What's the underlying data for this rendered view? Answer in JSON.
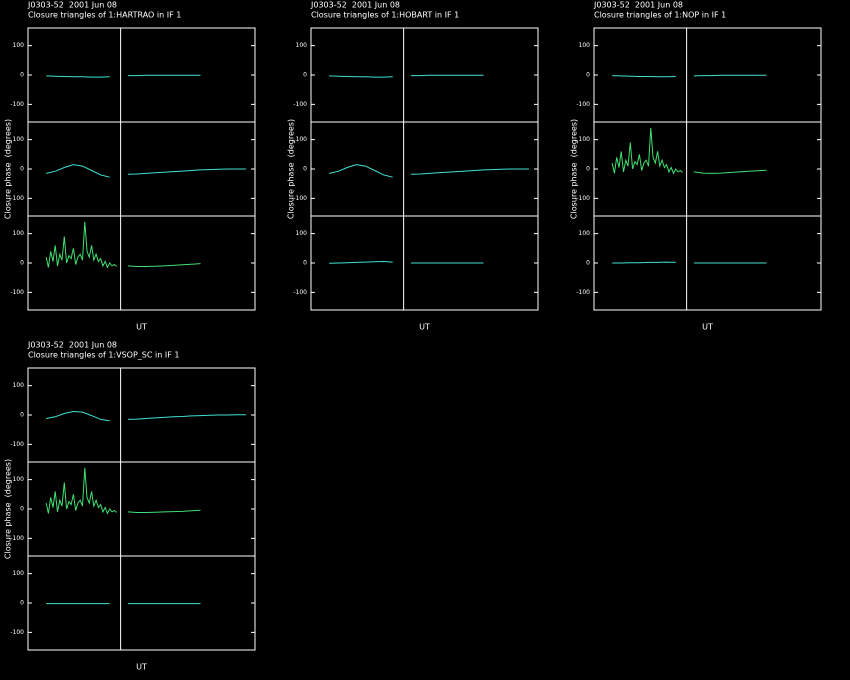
{
  "chart_data": [
    {
      "type": "line",
      "title": "J0303-52  2001 Jun 08",
      "subtitle": "Closure triangles of 1:HARTRAO in IF 1",
      "ylabel": "Closure phase  (degrees)",
      "xlabel": "UT",
      "xlim": [
        0,
        25
      ],
      "ylim": [
        -160,
        160
      ],
      "yticks": [
        -100,
        0,
        100
      ],
      "panels": [
        {
          "color": "#40e0d0",
          "x": [
            2,
            3,
            4,
            5,
            6,
            7,
            8,
            9,
            10,
            11,
            12,
            13,
            14,
            15,
            16,
            17,
            18,
            19
          ],
          "values": [
            -3,
            -4,
            -5,
            -6,
            -6,
            -7,
            -7,
            -6,
            null,
            -2,
            -2,
            -1,
            -1,
            -1,
            -1,
            -1,
            -1,
            -1
          ]
        },
        {
          "color": "#40e0d0",
          "x": [
            2,
            3,
            4,
            5,
            6,
            7,
            8,
            9,
            10,
            11,
            12,
            13,
            14,
            15,
            16,
            17,
            18,
            19,
            20,
            21,
            22,
            23,
            24
          ],
          "values": [
            -15,
            -8,
            5,
            15,
            10,
            -5,
            -20,
            -28,
            null,
            -18,
            -17,
            -15,
            -13,
            -11,
            -9,
            -7,
            -5,
            -3,
            -2,
            -1,
            0,
            0,
            0
          ]
        },
        {
          "color": "#40e070",
          "x": [
            2,
            2.25,
            2.5,
            2.75,
            3,
            3.25,
            3.5,
            3.75,
            4,
            4.25,
            4.5,
            4.75,
            5,
            5.25,
            5.5,
            5.75,
            6,
            6.25,
            6.5,
            6.75,
            7,
            7.25,
            7.5,
            7.75,
            8,
            8.25,
            8.5,
            8.75,
            9,
            9.25,
            9.5,
            9.75,
            10,
            11,
            12,
            13,
            14,
            15,
            16,
            17,
            18,
            19
          ],
          "values": [
            20,
            -15,
            40,
            5,
            60,
            -10,
            30,
            10,
            90,
            0,
            25,
            15,
            50,
            -5,
            20,
            30,
            10,
            140,
            40,
            20,
            60,
            10,
            30,
            5,
            15,
            -10,
            5,
            -15,
            0,
            -10,
            -5,
            -12,
            null,
            -10,
            -12,
            -12,
            -11,
            -10,
            -8,
            -6,
            -4,
            -2
          ]
        }
      ]
    },
    {
      "type": "line",
      "title": "J0303-52  2001 Jun 08",
      "subtitle": "Closure triangles of 1:HOBART in IF 1",
      "ylabel": "Closure phase  (degrees)",
      "xlabel": "UT",
      "xlim": [
        0,
        25
      ],
      "ylim": [
        -160,
        160
      ],
      "yticks": [
        -100,
        0,
        100
      ],
      "panels": [
        {
          "color": "#40e0d0",
          "x": [
            2,
            3,
            4,
            5,
            6,
            7,
            8,
            9,
            10,
            11,
            12,
            13,
            14,
            15,
            16,
            17,
            18,
            19
          ],
          "values": [
            -3,
            -4,
            -5,
            -6,
            -6,
            -7,
            -7,
            -6,
            null,
            -2,
            -2,
            -1,
            -1,
            -1,
            -1,
            -1,
            -1,
            -1
          ]
        },
        {
          "color": "#40e0d0",
          "x": [
            2,
            3,
            4,
            5,
            6,
            7,
            8,
            9,
            10,
            11,
            12,
            13,
            14,
            15,
            16,
            17,
            18,
            19,
            20,
            21,
            22,
            23,
            24
          ],
          "values": [
            -15,
            -8,
            5,
            15,
            10,
            -5,
            -20,
            -28,
            null,
            -18,
            -17,
            -15,
            -13,
            -11,
            -9,
            -7,
            -5,
            -3,
            -2,
            -1,
            0,
            0,
            0
          ]
        },
        {
          "color": "#40e0d0",
          "x": [
            2,
            3,
            4,
            5,
            6,
            7,
            8,
            9,
            10,
            11,
            12,
            13,
            14,
            15,
            16,
            17,
            18,
            19
          ],
          "values": [
            -1,
            0,
            1,
            2,
            3,
            4,
            5,
            3,
            null,
            0,
            0,
            0,
            0,
            0,
            0,
            0,
            0,
            0
          ]
        }
      ]
    },
    {
      "type": "line",
      "title": "J0303-52  2001 Jun 08",
      "subtitle": "Closure triangles of 1:NOP in IF 1",
      "ylabel": "Closure phase  (degrees)",
      "xlabel": "UT",
      "xlim": [
        0,
        25
      ],
      "ylim": [
        -160,
        160
      ],
      "yticks": [
        -100,
        0,
        100
      ],
      "panels": [
        {
          "color": "#40e0d0",
          "x": [
            2,
            3,
            4,
            5,
            6,
            7,
            8,
            9,
            10,
            11,
            12,
            13,
            14,
            15,
            16,
            17,
            18,
            19
          ],
          "values": [
            -2,
            -3,
            -4,
            -5,
            -5,
            -6,
            -6,
            -5,
            null,
            -3,
            -2,
            -2,
            -1,
            -1,
            -1,
            -1,
            -1,
            -1
          ]
        },
        {
          "color": "#40e070",
          "x": [
            2,
            2.25,
            2.5,
            2.75,
            3,
            3.25,
            3.5,
            3.75,
            4,
            4.25,
            4.5,
            4.75,
            5,
            5.25,
            5.5,
            5.75,
            6,
            6.25,
            6.5,
            6.75,
            7,
            7.25,
            7.5,
            7.75,
            8,
            8.25,
            8.5,
            8.75,
            9,
            9.25,
            9.5,
            9.75,
            10,
            11,
            12,
            13,
            14,
            15,
            16,
            17,
            18,
            19
          ],
          "values": [
            20,
            -15,
            40,
            5,
            60,
            -10,
            30,
            10,
            90,
            0,
            25,
            15,
            50,
            -5,
            20,
            30,
            10,
            140,
            40,
            20,
            60,
            10,
            30,
            5,
            15,
            -10,
            5,
            -15,
            0,
            -10,
            -5,
            -12,
            null,
            -10,
            -14,
            -15,
            -14,
            -12,
            -10,
            -8,
            -6,
            -4
          ]
        },
        {
          "color": "#40e0d0",
          "x": [
            2,
            3,
            4,
            5,
            6,
            7,
            8,
            9,
            10,
            11,
            12,
            13,
            14,
            15,
            16,
            17,
            18,
            19
          ],
          "values": [
            0,
            0,
            1,
            1,
            2,
            2,
            3,
            2,
            null,
            0,
            0,
            0,
            0,
            0,
            0,
            0,
            0,
            0
          ]
        }
      ]
    },
    {
      "type": "line",
      "title": "J0303-52  2001 Jun 08",
      "subtitle": "Closure triangles of 1:VSOP_SC in IF 1",
      "ylabel": "Closure phase  (degrees)",
      "xlabel": "UT",
      "xlim": [
        0,
        25
      ],
      "ylim": [
        -160,
        160
      ],
      "yticks": [
        -100,
        0,
        100
      ],
      "panels": [
        {
          "color": "#40e0d0",
          "x": [
            2,
            3,
            4,
            5,
            6,
            7,
            8,
            9,
            10,
            11,
            12,
            13,
            14,
            15,
            16,
            17,
            18,
            19,
            20,
            21,
            22,
            23,
            24
          ],
          "values": [
            -12,
            -6,
            5,
            12,
            10,
            -2,
            -15,
            -20,
            null,
            -15,
            -14,
            -12,
            -10,
            -8,
            -6,
            -5,
            -3,
            -2,
            -1,
            0,
            0,
            1,
            1
          ]
        },
        {
          "color": "#40e070",
          "x": [
            2,
            2.25,
            2.5,
            2.75,
            3,
            3.25,
            3.5,
            3.75,
            4,
            4.25,
            4.5,
            4.75,
            5,
            5.25,
            5.5,
            5.75,
            6,
            6.25,
            6.5,
            6.75,
            7,
            7.25,
            7.5,
            7.75,
            8,
            8.25,
            8.5,
            8.75,
            9,
            9.25,
            9.5,
            9.75,
            10,
            11,
            12,
            13,
            14,
            15,
            16,
            17,
            18,
            19
          ],
          "values": [
            20,
            -15,
            40,
            5,
            60,
            -10,
            30,
            10,
            90,
            0,
            25,
            15,
            50,
            -5,
            20,
            30,
            10,
            140,
            40,
            20,
            60,
            10,
            30,
            5,
            15,
            -10,
            5,
            -15,
            0,
            -10,
            -5,
            -12,
            null,
            -10,
            -12,
            -12,
            -11,
            -10,
            -9,
            -8,
            -6,
            -4
          ]
        },
        {
          "color": "#40e0d0",
          "x": [
            2,
            3,
            4,
            5,
            6,
            7,
            8,
            9,
            10,
            11,
            12,
            13,
            14,
            15,
            16,
            17,
            18,
            19
          ],
          "values": [
            -2,
            -2,
            -2,
            -2,
            -2,
            -2,
            -2,
            -2,
            null,
            -2,
            -2,
            -2,
            -2,
            -2,
            -2,
            -2,
            -2,
            -2
          ]
        }
      ]
    }
  ]
}
